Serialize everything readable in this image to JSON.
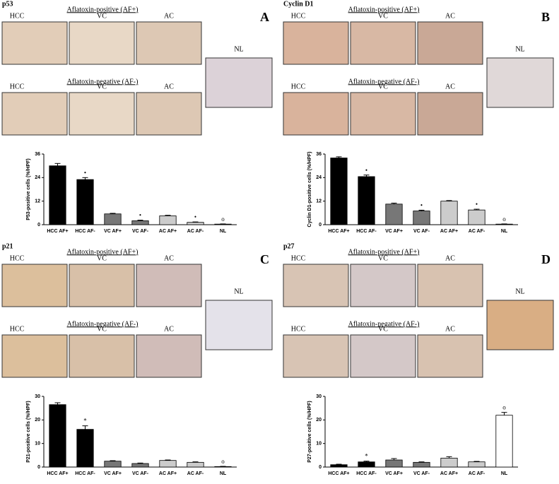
{
  "chart_data": [
    {
      "type": "bar",
      "title": "p53",
      "panel": "A",
      "groups": [
        {
          "label": "Aflatoxin-positive (AF+)",
          "images": [
            "HCC",
            "VC",
            "AC"
          ]
        },
        {
          "label": "Aflatoxin-negative (AF-)",
          "images": [
            "HCC",
            "VC",
            "AC"
          ]
        }
      ],
      "reference_image": "NL",
      "ylabel": "P53-positive cells (%/HPF)",
      "categories": [
        "HCC AF+",
        "HCC AF-",
        "VC AF+",
        "VC AF-",
        "AC AF+",
        "AC AF-",
        "NL"
      ],
      "values": [
        30,
        23,
        5.5,
        2,
        4.5,
        1.2,
        0.3
      ],
      "errors": [
        1.2,
        1,
        0.3,
        0.3,
        0.3,
        0.2,
        0.1
      ],
      "colors": [
        "#000000",
        "#000000",
        "#777777",
        "#777777",
        "#cccccc",
        "#cccccc",
        "#ffffff"
      ],
      "annotations": [
        {
          "category": "HCC AF-",
          "text": "•"
        },
        {
          "category": "VC AF-",
          "text": "•"
        },
        {
          "category": "AC AF-",
          "text": "•"
        },
        {
          "category": "NL",
          "text": "o"
        }
      ],
      "ylim": [
        0,
        36
      ],
      "yticks": [
        0,
        12,
        24,
        36
      ]
    },
    {
      "type": "bar",
      "title": "Cyclin D1",
      "panel": "B",
      "groups": [
        {
          "label": "Aflatoxin-positive (AF+)",
          "images": [
            "HCC",
            "VC",
            "AC"
          ]
        },
        {
          "label": "Aflatoxin-negative (AF-)",
          "images": [
            "HCC",
            "VC",
            "AC"
          ]
        }
      ],
      "reference_image": "NL",
      "ylabel": "Cyclin D1-positive cells (%/HPF)",
      "categories": [
        "HCC AF+",
        "HCC AF-",
        "VC AF+",
        "VC AF-",
        "AC AF+",
        "AC AF-",
        "NL"
      ],
      "values": [
        34,
        24.5,
        10.5,
        7,
        12,
        7.5,
        0.3
      ],
      "errors": [
        0.6,
        0.8,
        0.5,
        0.4,
        0.3,
        0.4,
        0.1
      ],
      "colors": [
        "#000000",
        "#000000",
        "#777777",
        "#777777",
        "#cccccc",
        "#cccccc",
        "#ffffff"
      ],
      "annotations": [
        {
          "category": "HCC AF-",
          "text": "•"
        },
        {
          "category": "VC AF-",
          "text": "•"
        },
        {
          "category": "AC AF-",
          "text": "•"
        },
        {
          "category": "NL",
          "text": "o"
        }
      ],
      "ylim": [
        0,
        36
      ],
      "yticks": [
        0,
        12,
        24,
        36
      ]
    },
    {
      "type": "bar",
      "title": "p21",
      "panel": "C",
      "groups": [
        {
          "label": "Aflatoxin-positive (AF+)",
          "images": [
            "HCC",
            "VC",
            "AC"
          ]
        },
        {
          "label": "Aflatoxin-negative (AF-)",
          "images": [
            "HCC",
            "VC",
            "AC"
          ]
        }
      ],
      "reference_image": "NL",
      "ylabel": "P21-positive cells (%/HPF)",
      "categories": [
        "HCC AF+",
        "HCC AF-",
        "VC AF+",
        "VC AF-",
        "AC AF+",
        "AC AF-",
        "NL"
      ],
      "values": [
        26.5,
        16,
        2.5,
        1.5,
        2.8,
        2,
        0.2
      ],
      "errors": [
        0.8,
        1.5,
        0.2,
        0.2,
        0.2,
        0.2,
        0.1
      ],
      "colors": [
        "#000000",
        "#000000",
        "#777777",
        "#777777",
        "#cccccc",
        "#cccccc",
        "#ffffff"
      ],
      "annotations": [
        {
          "category": "HCC AF-",
          "text": "*"
        },
        {
          "category": "NL",
          "text": "o"
        }
      ],
      "ylim": [
        0,
        30
      ],
      "yticks": [
        0,
        10,
        20,
        30
      ]
    },
    {
      "type": "bar",
      "title": "p27",
      "panel": "D",
      "groups": [
        {
          "label": "Aflatoxin-positive (AF+)",
          "images": [
            "HCC",
            "VC",
            "AC"
          ]
        },
        {
          "label": "Aflatoxin-negative (AF-)",
          "images": [
            "HCC",
            "VC",
            "AC"
          ]
        }
      ],
      "reference_image": "NL",
      "ylabel": "P27-positive cells (%/HPF)",
      "categories": [
        "HCC AF+",
        "HCC AF-",
        "VC AF+",
        "VC AF-",
        "AC AF+",
        "AC AF-",
        "NL"
      ],
      "values": [
        1,
        2.2,
        3,
        2,
        3.8,
        2.2,
        22
      ],
      "errors": [
        0.2,
        0.3,
        0.6,
        0.2,
        0.6,
        0.2,
        1.2
      ],
      "colors": [
        "#000000",
        "#000000",
        "#777777",
        "#777777",
        "#cccccc",
        "#cccccc",
        "#ffffff"
      ],
      "annotations": [
        {
          "category": "HCC AF-",
          "text": "*"
        },
        {
          "category": "NL",
          "text": "o"
        }
      ],
      "ylim": [
        0,
        30
      ],
      "yticks": [
        0,
        10,
        20,
        30
      ]
    }
  ]
}
